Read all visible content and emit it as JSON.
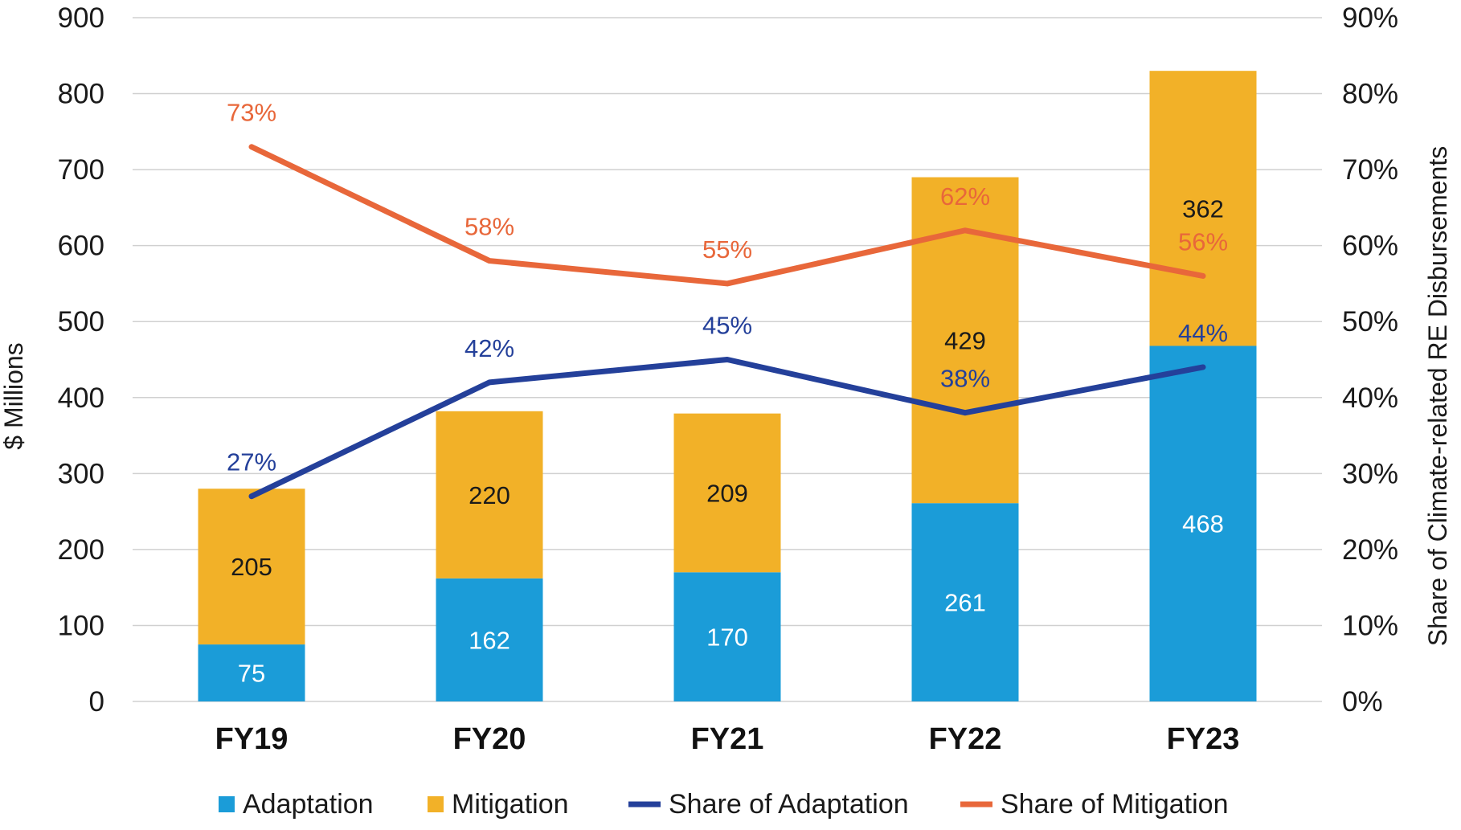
{
  "chart_data": {
    "type": "bar",
    "stacked": true,
    "categories": [
      "FY19",
      "FY20",
      "FY21",
      "FY22",
      "FY23"
    ],
    "series": [
      {
        "name": "Adaptation",
        "kind": "bar",
        "axis": "left",
        "color": "#1b9cd8",
        "label_color": "#ffffff",
        "values": [
          75,
          162,
          170,
          261,
          468
        ]
      },
      {
        "name": "Mitigation",
        "kind": "bar",
        "axis": "left",
        "color": "#f2b128",
        "label_color": "#1a1a1a",
        "values": [
          205,
          220,
          209,
          429,
          362
        ]
      },
      {
        "name": "Share of Adaptation",
        "kind": "line",
        "axis": "right",
        "color": "#24409a",
        "values": [
          27,
          42,
          45,
          38,
          44
        ],
        "labels": [
          "27%",
          "42%",
          "45%",
          "38%",
          "44%"
        ]
      },
      {
        "name": "Share of Mitigation",
        "kind": "line",
        "axis": "right",
        "color": "#e8673a",
        "values": [
          73,
          58,
          55,
          62,
          56
        ],
        "labels": [
          "73%",
          "58%",
          "55%",
          "62%",
          "56%"
        ]
      }
    ],
    "ylabel": "$ Millions",
    "y2label": "Share of Climate-related RE Disbursements",
    "ylim": [
      0,
      900
    ],
    "y2lim": [
      0,
      90
    ],
    "yticks": [
      "0",
      "100",
      "200",
      "300",
      "400",
      "500",
      "600",
      "700",
      "800",
      "900"
    ],
    "y2ticks": [
      "0%",
      "10%",
      "20%",
      "30%",
      "40%",
      "50%",
      "60%",
      "70%",
      "80%",
      "90%"
    ],
    "grid": true,
    "legend_position": "bottom"
  }
}
